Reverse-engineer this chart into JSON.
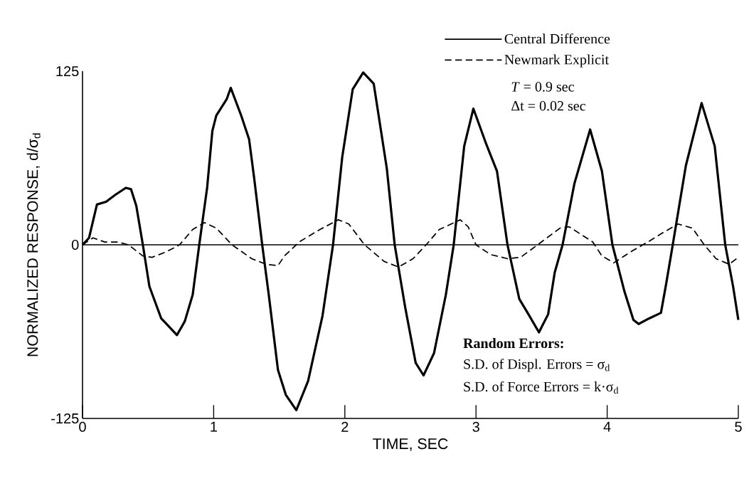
{
  "chart_data": {
    "type": "line",
    "xlabel": "TIME, SEC",
    "ylabel": "NORMALIZED RESPONSE, d/σ$_{d}$",
    "xlim": [
      0,
      5
    ],
    "ylim": [
      -125,
      125
    ],
    "xticks": [
      0,
      1,
      2,
      3,
      4,
      5
    ],
    "yticks": [
      -125,
      0,
      125
    ],
    "grid": false,
    "legend": "top right",
    "ref_lines": [
      {
        "axis": "y",
        "value": 0
      }
    ],
    "series": [
      {
        "name": "Central Difference",
        "color": "#000000",
        "line_style": "solid",
        "x": [
          0.0,
          0.05,
          0.11,
          0.18,
          0.25,
          0.33,
          0.37,
          0.41,
          0.46,
          0.51,
          0.6,
          0.65,
          0.72,
          0.78,
          0.84,
          0.89,
          0.95,
          0.99,
          1.02,
          1.1,
          1.13,
          1.21,
          1.27,
          1.31,
          1.37,
          1.42,
          1.49,
          1.55,
          1.63,
          1.72,
          1.83,
          1.91,
          1.98,
          2.06,
          2.14,
          2.22,
          2.32,
          2.38,
          2.46,
          2.54,
          2.6,
          2.68,
          2.77,
          2.83,
          2.91,
          2.98,
          3.08,
          3.16,
          3.24,
          3.33,
          3.4,
          3.48,
          3.55,
          3.6,
          3.66,
          3.75,
          3.87,
          3.96,
          4.04,
          4.13,
          4.2,
          4.24,
          4.32,
          4.41,
          4.45,
          4.5,
          4.6,
          4.72,
          4.82,
          4.9,
          4.96,
          5.0
        ],
        "values": [
          0,
          5,
          29,
          31,
          36,
          41,
          40,
          28,
          0,
          -30,
          -53,
          -58,
          -65,
          -55,
          -36,
          0,
          41,
          82,
          93,
          105,
          113,
          93,
          76,
          47,
          0,
          -36,
          -90,
          -108,
          -119,
          -98,
          -51,
          0,
          63,
          112,
          124,
          116,
          55,
          0,
          -45,
          -85,
          -94,
          -78,
          -36,
          0,
          71,
          98,
          72,
          53,
          0,
          -39,
          -50,
          -63,
          -50,
          -20,
          0,
          44,
          83,
          53,
          0,
          -33,
          -54,
          -57,
          -53,
          -49,
          -28,
          0,
          57,
          102,
          71,
          0,
          -30,
          -54
        ]
      },
      {
        "name": "Newmark Explicit",
        "color": "#000000",
        "line_style": "dashed",
        "x": [
          0.0,
          0.08,
          0.17,
          0.27,
          0.35,
          0.46,
          0.53,
          0.64,
          0.74,
          0.84,
          0.93,
          1.02,
          1.14,
          1.29,
          1.4,
          1.49,
          1.54,
          1.63,
          1.65,
          1.81,
          1.95,
          2.03,
          2.15,
          2.3,
          2.41,
          2.52,
          2.62,
          2.72,
          2.88,
          2.94,
          3.0,
          3.11,
          3.24,
          3.34,
          3.47,
          3.64,
          3.71,
          3.89,
          3.96,
          4.05,
          4.18,
          4.31,
          4.43,
          4.54,
          4.65,
          4.74,
          4.83,
          4.93,
          5.0
        ],
        "values": [
          0,
          5,
          2,
          2,
          0,
          -8,
          -9,
          -5,
          0,
          11,
          16,
          12,
          0,
          -10,
          -14,
          -15,
          -8,
          0,
          2,
          11,
          18,
          15,
          0,
          -12,
          -16,
          -10,
          0,
          11,
          18,
          13,
          0,
          -7,
          -10,
          -9,
          0,
          12,
          13,
          2,
          -8,
          -13,
          -5,
          2,
          9,
          15,
          12,
          0,
          -10,
          -14,
          -9
        ]
      }
    ],
    "annotations": [
      "*T* = 0.9 sec",
      "Δt = 0.02 sec",
      "Random Errors:",
      "S.D. of Displ. Errors = σ$_{d}$",
      "S.D. of Force Errors = k·σ$_{d}$"
    ]
  }
}
